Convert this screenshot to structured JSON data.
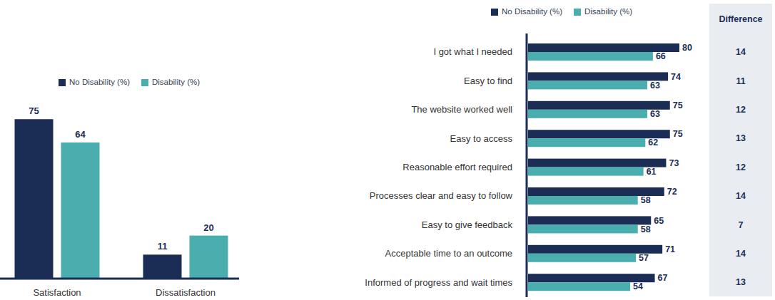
{
  "chart_data": [
    {
      "type": "bar",
      "categories": [
        "Satisfaction",
        "Dissatisfaction"
      ],
      "series": [
        {
          "name": "No Disability (%)",
          "color": "#1b2d55",
          "values": [
            75,
            11
          ]
        },
        {
          "name": "Disability (%)",
          "color": "#4aadae",
          "values": [
            64,
            20
          ]
        }
      ],
      "ylim": [
        0,
        100
      ],
      "data_labels": true,
      "tick_labels": "x",
      "legend": "top"
    },
    {
      "type": "bar",
      "orientation": "horizontal",
      "categories": [
        "I got what I needed",
        "Easy to find",
        "The website worked well",
        "Easy to access",
        "Reasonable effort required",
        "Processes clear and easy to follow",
        "Easy to give feedback",
        "Acceptable time to an outcome",
        "Informed of progress and wait times"
      ],
      "series": [
        {
          "name": "No Disability (%)",
          "color": "#1b2d55",
          "values": [
            80,
            74,
            75,
            75,
            73,
            72,
            65,
            71,
            67
          ]
        },
        {
          "name": "Disability (%)",
          "color": "#4aadae",
          "values": [
            66,
            63,
            63,
            62,
            61,
            58,
            58,
            57,
            54
          ]
        }
      ],
      "xlim": [
        0,
        100
      ],
      "data_labels": true,
      "tick_labels": "y",
      "legend": "top",
      "difference": {
        "label": "Difference",
        "values": [
          14,
          11,
          12,
          13,
          12,
          14,
          7,
          14,
          13
        ]
      }
    }
  ]
}
